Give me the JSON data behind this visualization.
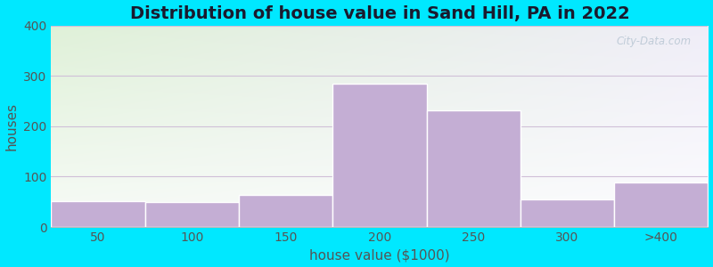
{
  "title": "Distribution of house value in Sand Hill, PA in 2022",
  "xlabel": "house value ($1000)",
  "ylabel": "houses",
  "bar_labels": [
    "50",
    "100",
    "150",
    "200",
    "250",
    "300",
    ">400"
  ],
  "bar_values": [
    52,
    50,
    63,
    285,
    232,
    55,
    88
  ],
  "bar_color": "#c4aed4",
  "bar_edge_color": "#ffffff",
  "ylim": [
    0,
    400
  ],
  "yticks": [
    0,
    100,
    200,
    300,
    400
  ],
  "bg_color_topleft": "#d8efd0",
  "bg_color_topright": "#f0f0f8",
  "bg_color_bottom": "#f8f8ff",
  "outer_background": "#00e8ff",
  "title_fontsize": 14,
  "axis_label_fontsize": 11,
  "tick_fontsize": 10,
  "tick_color": "#555555",
  "grid_color": "#d0c0d8",
  "watermark_text": "City-Data.com",
  "watermark_color": "#c0ccd8"
}
